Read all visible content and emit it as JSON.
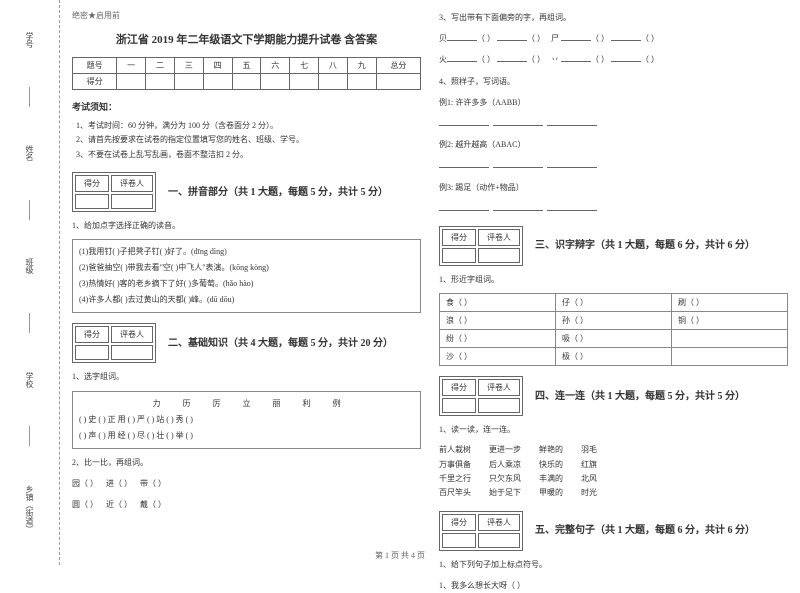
{
  "binding": {
    "labels": [
      "学号",
      "姓名",
      "班级",
      "学校",
      "乡镇（街道）"
    ],
    "marks": [
      "题",
      "答",
      "不",
      "内",
      "线",
      "封",
      "密"
    ]
  },
  "header": {
    "secret": "绝密★启用前",
    "title": "浙江省 2019 年二年级语文下学期能力提升试卷 含答案"
  },
  "score_table": {
    "row1": [
      "题号",
      "一",
      "二",
      "三",
      "四",
      "五",
      "六",
      "七",
      "八",
      "九",
      "总分"
    ],
    "row2_head": "得分"
  },
  "notice": {
    "heading": "考试须知：",
    "items": [
      "1、考试时间：60 分钟，满分为 100 分（含卷面分 2 分）。",
      "2、请首先按要求在试卷的指定位置填写您的姓名、班级、学号。",
      "3、不要在试卷上乱写乱画，卷面不整洁扣 2 分。"
    ]
  },
  "scorebox": {
    "c1": "得分",
    "c2": "评卷人"
  },
  "s1": {
    "title": "一、拼音部分（共 1 大题，每题 5 分，共计 5 分）",
    "q1": "1、给加点字选择正确的读音。",
    "l1": "(1)我用钉(     )子把凳子钉(     )好了。(dīng  dìng)",
    "l2": "(2)爸爸抽空(    )带我去看\"空(    )中飞人\"表演。(kōng  kòng)",
    "l3": "(3)热情好(    )客的老乡摘下了好(    )多葡萄。(hǎo  hào)",
    "l4": "(4)许多人都(    )去过黄山的天都(    )峰。(dū   dōu)"
  },
  "s2": {
    "title": "二、基础知识（共 4 大题，每题 5 分，共计 20 分）",
    "q1": "1、选字组词。",
    "chars": [
      "力",
      "历",
      "厉",
      "立",
      "丽",
      "利",
      "例"
    ],
    "r1": "(    ) 史  (    ) 正   用 (    )   严 (    )   站 (    )   秀 (    )",
    "r2": "(    ) 声  (    ) 用   经 (    )   尽 (    )   壮 (    )   举 (    )",
    "q2": "2、比一比，再组词。",
    "p1a": "园（       ）",
    "p1b": "进（       ）",
    "p1c": "带（       ）",
    "p2a": "圆（       ）",
    "p2b": "近（       ）",
    "p2c": "戴（       ）"
  },
  "right": {
    "q3": "3、写出带有下面偏旁的字，再组词。",
    "r1a": "贝",
    "r1b": "尸",
    "r2a": "火",
    "r2b": "丷",
    "q4": "4、照样子，写词语。",
    "ex1": "例1: 许许多多（AABB）",
    "ex2": "例2: 越升越高（ABAC）",
    "ex3": "例3: 踢足（动作+物品）"
  },
  "s3": {
    "title": "三、识字辩字（共 1 大题，每题 6 分，共计 6 分）",
    "q1": "1、形近字组词。",
    "rows": [
      [
        "食（     ）",
        "仔（     ）",
        "刷（     ）"
      ],
      [
        "浪（     ）",
        "孙（     ）",
        "铜（     ）"
      ],
      [
        "纷（     ）",
        "吸（     ）",
        ""
      ],
      [
        "沙（     ）",
        "极（     ）",
        ""
      ]
    ]
  },
  "s4": {
    "title": "四、连一连（共 1 大题，每题 5 分，共计 5 分）",
    "q1": "1、读一读，连一连。",
    "colA": [
      "前人栽树",
      "万事俱备",
      "千里之行",
      "百尺竿头"
    ],
    "colB": [
      "更进一步",
      "后人乘凉",
      "只欠东风",
      "始于足下"
    ],
    "colC": [
      "鲜艳的",
      "快乐的",
      "丰满的",
      "甲暖的"
    ],
    "colD": [
      "羽毛",
      "红旗",
      "北风",
      "时光"
    ]
  },
  "s5": {
    "title": "五、完整句子（共 1 大题，每题 6 分，共计 6 分）",
    "q1": "1、给下列句子加上标点符号。",
    "l1": "1、我多么想长大呀（    ）"
  },
  "footer": "第 1 页  共 4 页"
}
